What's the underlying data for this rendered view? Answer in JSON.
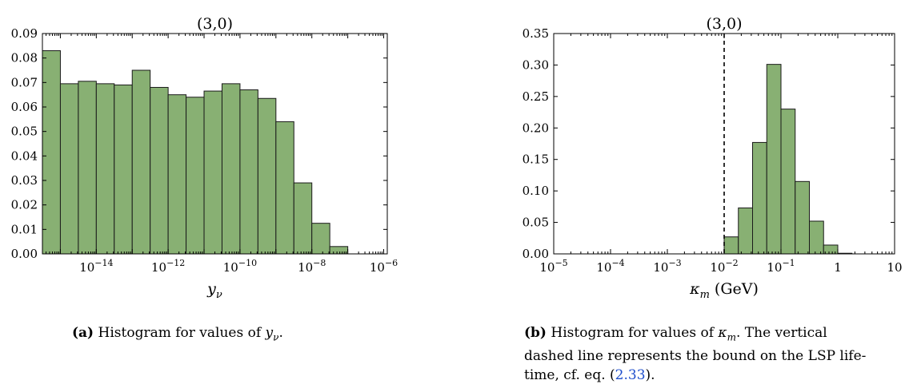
{
  "colors": {
    "bar_fill": "#88b073",
    "bar_stroke": "#1a1a1a",
    "ref_link": "#1f4fcc"
  },
  "chart_data": [
    {
      "type": "bar",
      "title": "(3,0)",
      "xlabel": "y_ν",
      "x_scale": "log10",
      "xlim_exp": [
        -15.5,
        -5.9
      ],
      "ylim": [
        0,
        0.09
      ],
      "yticks": [
        "0.00",
        "0.01",
        "0.02",
        "0.03",
        "0.04",
        "0.05",
        "0.06",
        "0.07",
        "0.08",
        "0.09"
      ],
      "xticks": [
        {
          "exp": -14,
          "base": "10",
          "sup": "−14"
        },
        {
          "exp": -12,
          "base": "10",
          "sup": "−12"
        },
        {
          "exp": -10,
          "base": "10",
          "sup": "−10"
        },
        {
          "exp": -8,
          "base": "10",
          "sup": "−8"
        },
        {
          "exp": -6,
          "base": "10",
          "sup": "−6"
        }
      ],
      "bin_edges_exp": [
        -15.5,
        -15.0,
        -14.5,
        -14.0,
        -13.5,
        -13.0,
        -12.5,
        -12.0,
        -11.5,
        -11.0,
        -10.5,
        -10.0,
        -9.5,
        -9.0,
        -8.5,
        -8.0,
        -7.5,
        -7.0,
        -6.5
      ],
      "values": [
        0.083,
        0.0695,
        0.0705,
        0.0695,
        0.069,
        0.075,
        0.068,
        0.065,
        0.064,
        0.0665,
        0.0695,
        0.067,
        0.0635,
        0.054,
        0.029,
        0.0125,
        0.003,
        0.0
      ]
    },
    {
      "type": "bar",
      "title": "(3,0)",
      "xlabel": "κ_m (GeV)",
      "x_scale": "log10",
      "xlim_exp": [
        -5,
        1
      ],
      "ylim": [
        0,
        0.35
      ],
      "yticks": [
        "0.00",
        "0.05",
        "0.10",
        "0.15",
        "0.20",
        "0.25",
        "0.30",
        "0.35"
      ],
      "xticks": [
        {
          "exp": -5,
          "base": "10",
          "sup": "−5"
        },
        {
          "exp": -4,
          "base": "10",
          "sup": "−4"
        },
        {
          "exp": -3,
          "base": "10",
          "sup": "−3"
        },
        {
          "exp": -2,
          "base": "10",
          "sup": "−2"
        },
        {
          "exp": -1,
          "base": "10",
          "sup": "−1"
        },
        {
          "exp": 0,
          "base": "1",
          "sup": ""
        },
        {
          "exp": 1,
          "base": "10",
          "sup": ""
        }
      ],
      "vline_exp": -2,
      "bin_edges_exp": [
        -2.0,
        -1.75,
        -1.5,
        -1.25,
        -1.0,
        -0.75,
        -0.5,
        -0.25,
        0.0,
        0.25
      ],
      "values": [
        0.027,
        0.073,
        0.177,
        0.301,
        0.23,
        0.115,
        0.052,
        0.014,
        0.001
      ]
    }
  ],
  "captions": {
    "a": {
      "tag": "(a)",
      "text_pre": "Histogram for values of ",
      "math": "y",
      "math_sub": "ν",
      "text_post": "."
    },
    "b": {
      "tag": "(b)",
      "line1_pre": "Histogram for values of ",
      "line1_math": "κ",
      "line1_math_sub": "m",
      "line1_post": ".  The vertical",
      "line2": "dashed line represents the bound on the LSP life-",
      "line3_pre": "time, cf. eq. (",
      "line3_ref": "2.33",
      "line3_post": ")."
    }
  }
}
